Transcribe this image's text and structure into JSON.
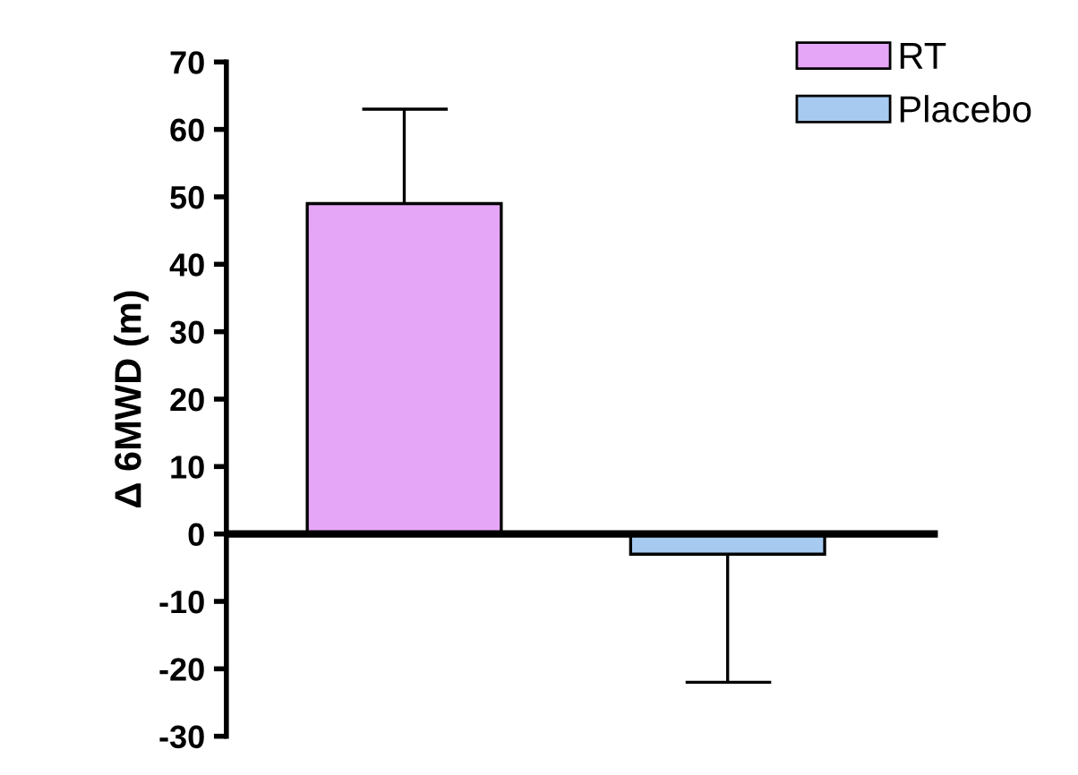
{
  "chart_data": {
    "type": "bar",
    "ylabel": "Δ 6MWD (m)",
    "categories": [
      null,
      null
    ],
    "series": [
      {
        "name": "RT",
        "color": "#e6a6f7",
        "values": [
          49,
          null
        ],
        "errors": [
          [
            49,
            63
          ],
          null
        ]
      },
      {
        "name": "Placebo",
        "color": "#a6caf0",
        "values": [
          null,
          -3
        ],
        "errors": [
          null,
          [
            -22,
            -3
          ]
        ]
      }
    ],
    "ylim": [
      -30,
      70
    ],
    "yticks": [
      -30,
      -20,
      -10,
      0,
      10,
      20,
      30,
      40,
      50,
      60,
      70
    ],
    "ref_lines": [
      {
        "axis": "y",
        "value": 0,
        "color": "#000000",
        "line_style": "solid"
      }
    ],
    "grid": false,
    "legend": "top right"
  }
}
